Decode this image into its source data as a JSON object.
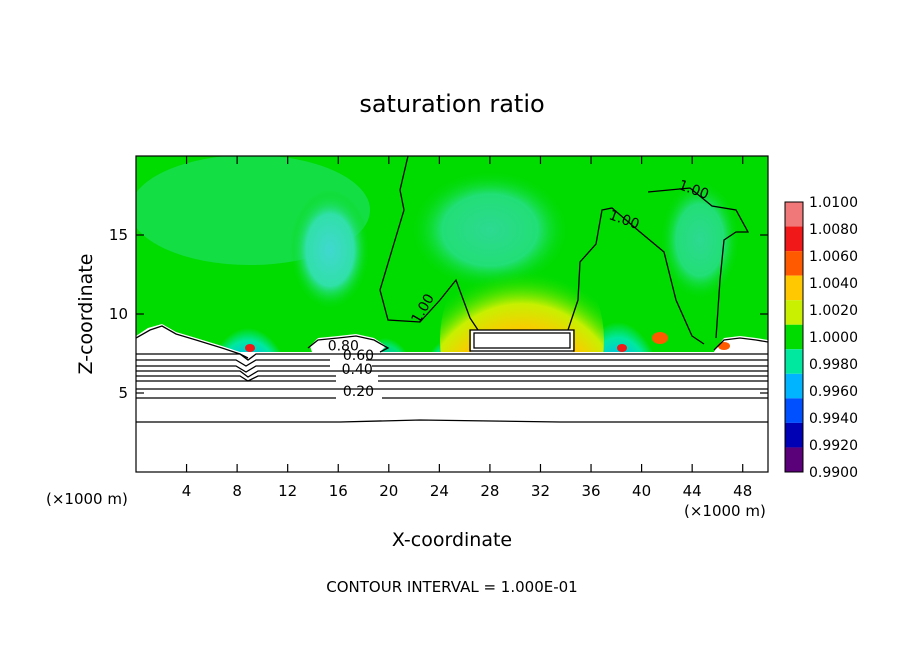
{
  "chart_data": {
    "type": "heatmap",
    "title": "saturation ratio",
    "xlabel": "X-coordinate",
    "ylabel": "Z-coordinate",
    "x_unit_label": "(×1000 m)",
    "x_unit_label_right": "(×1000 m)",
    "xlim": [
      0,
      50
    ],
    "ylim": [
      0,
      20
    ],
    "x_ticks": [
      4,
      8,
      12,
      16,
      20,
      24,
      28,
      32,
      36,
      40,
      44,
      48
    ],
    "y_ticks": [
      5,
      10,
      15
    ],
    "colorbar": {
      "levels": [
        "1.0100",
        "1.0080",
        "1.0060",
        "1.0040",
        "1.0020",
        "1.0000",
        "0.9980",
        "0.9960",
        "0.9940",
        "0.9920",
        "0.9900"
      ],
      "colors": [
        "#f07878",
        "#f01818",
        "#ff5a00",
        "#ffc800",
        "#c8f000",
        "#00dc00",
        "#00e8a0",
        "#00b4ff",
        "#0050ff",
        "#0000b4",
        "#5a0078"
      ]
    },
    "contour_labels": [
      {
        "text": "1.00",
        "x": 23.0,
        "z": 10.2
      },
      {
        "text": "1.00",
        "x": 38.5,
        "z": 15.7
      },
      {
        "text": "1.00",
        "x": 44.0,
        "z": 17.6
      },
      {
        "text": "0.80",
        "x": 16.4,
        "z": 7.7
      },
      {
        "text": "0.60",
        "x": 17.6,
        "z": 7.1
      },
      {
        "text": "0.40",
        "x": 17.5,
        "z": 6.2
      },
      {
        "text": "0.20",
        "x": 17.6,
        "z": 4.8
      }
    ],
    "contour_interval_text": "CONTOUR INTERVAL = 1.000E-01",
    "features": {
      "warm_max_center_x": 30.5,
      "warm_max_top_z": 14.0,
      "cloud_top_z": 8.7,
      "dry_layer_top_z": 7.8
    }
  }
}
